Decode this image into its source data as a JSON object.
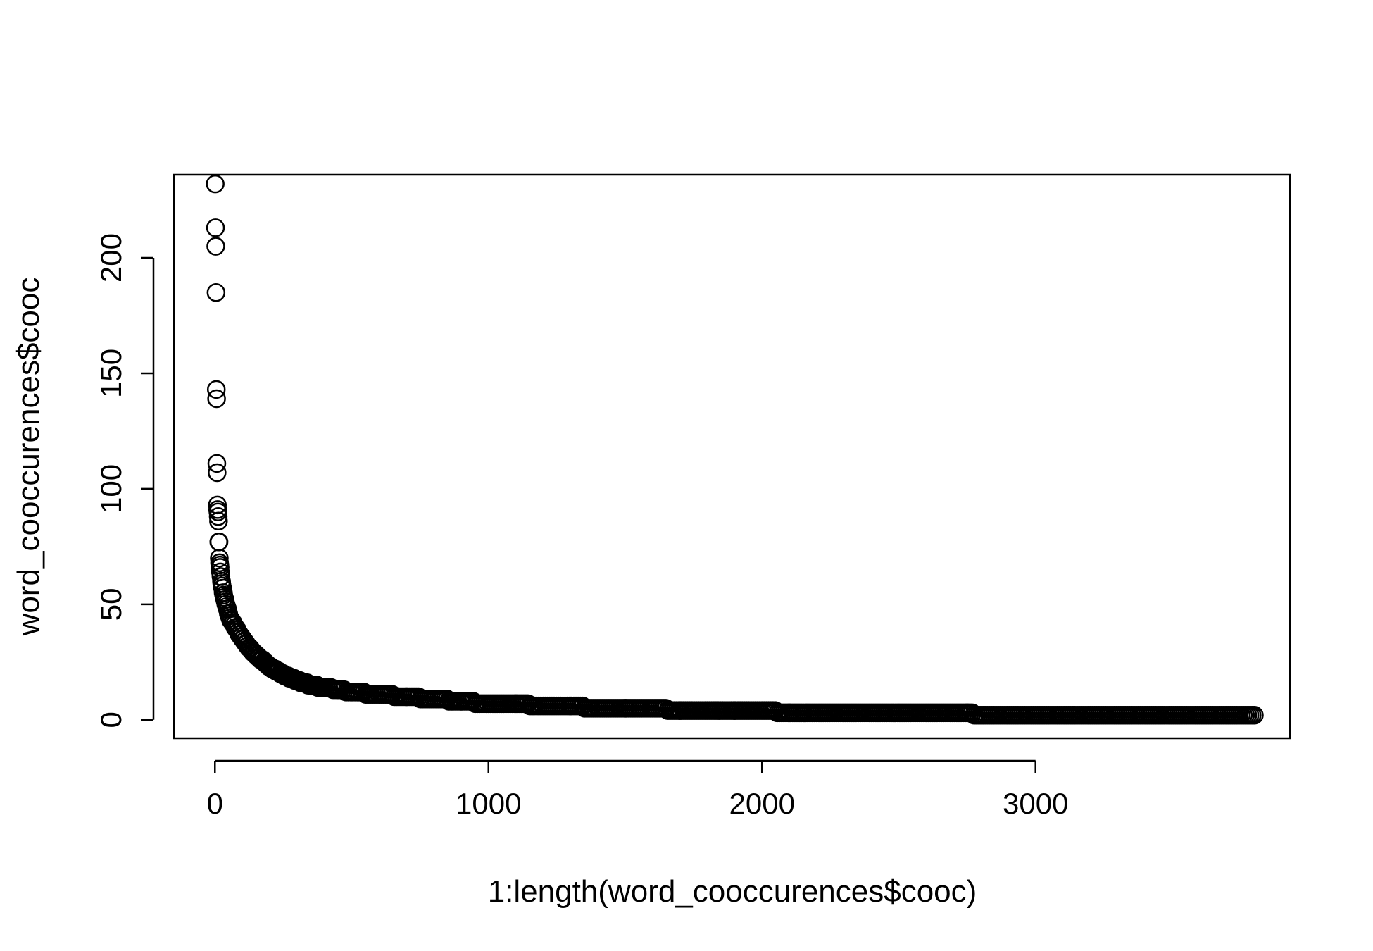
{
  "chart_data": {
    "type": "scatter",
    "title": "",
    "xlabel": "1:length(word_cooccurences$cooc)",
    "ylabel": "word_cooccurences$cooc",
    "xlim": [
      -150,
      3930
    ],
    "ylim": [
      -8,
      236
    ],
    "x_ticks": [
      0,
      1000,
      2000,
      3000
    ],
    "y_ticks": [
      0,
      50,
      100,
      150,
      200
    ],
    "x_tick_labels": [
      "0",
      "1000",
      "2000",
      "3000"
    ],
    "y_tick_labels": [
      "0",
      "50",
      "100",
      "150",
      "200"
    ],
    "n_points": 3800,
    "marker": "open-circle",
    "grid": false,
    "series": [
      {
        "x": [
          1,
          2,
          3,
          4,
          5,
          6,
          7,
          8,
          9,
          10,
          11,
          12,
          13,
          14,
          15,
          16,
          17,
          18,
          19,
          20,
          22,
          24,
          26,
          28,
          30,
          32,
          34,
          36,
          38,
          40,
          45,
          50,
          55,
          60,
          65,
          70,
          80,
          90,
          100,
          120,
          140,
          160,
          180,
          200,
          230,
          260,
          300,
          350,
          400,
          450,
          500,
          600,
          700,
          800,
          900,
          1000,
          1100,
          1200,
          1300,
          1400,
          1500,
          1600,
          1700,
          1800,
          1900,
          2000,
          2100,
          2200,
          2400,
          2600,
          2750,
          2800,
          3000,
          3200,
          3400,
          3600,
          3800
        ],
        "y": [
          232,
          213,
          205,
          185,
          143,
          139,
          111,
          107,
          93,
          91,
          90,
          88,
          86,
          77,
          77,
          70,
          68,
          67,
          66,
          64,
          62,
          60,
          58,
          57,
          55,
          54,
          53,
          52,
          51,
          50,
          48,
          46,
          44,
          43,
          42,
          41,
          39,
          37,
          35,
          32,
          29,
          27,
          25,
          23,
          21,
          19,
          17,
          15,
          14,
          13,
          12,
          11,
          10,
          9,
          8,
          7,
          7,
          6,
          6,
          5,
          5,
          5,
          4,
          4,
          4,
          4,
          3,
          3,
          3,
          3,
          3,
          2,
          2,
          2,
          2,
          2,
          2
        ]
      }
    ]
  }
}
